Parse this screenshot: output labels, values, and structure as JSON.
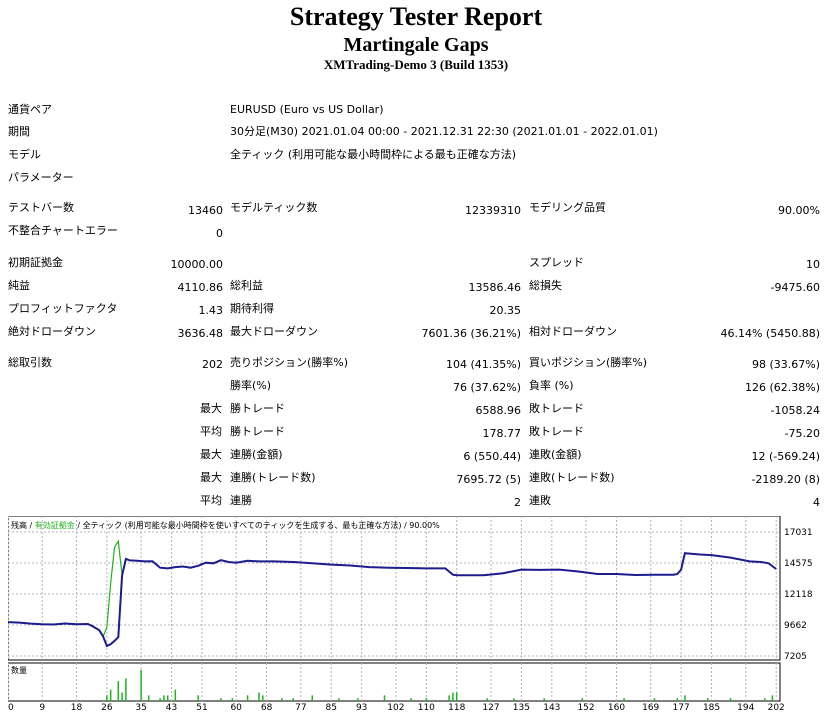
{
  "header": {
    "title": "Strategy Tester Report",
    "subtitle": "Martingale Gaps",
    "server": "XMTrading-Demo 3 (Build 1353)"
  },
  "info": {
    "symbol_label": "通貨ペア",
    "symbol_value": "EURUSD (Euro vs US Dollar)",
    "period_label": "期間",
    "period_value": "30分足(M30) 2021.01.04 00:00 - 2021.12.31 22:30 (2021.01.01 - 2022.01.01)",
    "model_label": "モデル",
    "model_value": "全ティック (利用可能な最小時間枠による最も正確な方法)",
    "params_label": "パラメーター"
  },
  "stats": {
    "bars_label": "テストバー数",
    "bars_value": "13460",
    "ticks_label": "モデルティック数",
    "ticks_value": "12339310",
    "quality_label": "モデリング品質",
    "quality_value": "90.00%",
    "mismatch_label": "不整合チャートエラー",
    "mismatch_value": "0",
    "deposit_label": "初期証拠金",
    "deposit_value": "10000.00",
    "spread_label": "スプレッド",
    "spread_value": "10",
    "net_label": "純益",
    "net_value": "4110.86",
    "gross_profit_label": "総利益",
    "gross_profit_value": "13586.46",
    "gross_loss_label": "総損失",
    "gross_loss_value": "-9475.60",
    "pf_label": "プロフィットファクタ",
    "pf_value": "1.43",
    "payoff_label": "期待利得",
    "payoff_value": "20.35",
    "abs_dd_label": "絶対ドローダウン",
    "abs_dd_value": "3636.48",
    "max_dd_label": "最大ドローダウン",
    "max_dd_value": "7601.36 (36.21%)",
    "rel_dd_label": "相対ドローダウン",
    "rel_dd_value": "46.14% (5450.88)",
    "trades_label": "総取引数",
    "trades_value": "202",
    "short_label": "売りポジション(勝率%)",
    "short_value": "104 (41.35%)",
    "long_label": "買いポジション(勝率%)",
    "long_value": "98 (33.67%)",
    "win_label": "勝率(%)",
    "win_value": "76 (37.62%)",
    "loss_label": "負率 (%)",
    "loss_value": "126 (62.38%)",
    "max_label": "最大",
    "avg_label": "平均",
    "win_trade_label": "勝トレード",
    "loss_trade_label": "敗トレード",
    "largest_win": "6588.96",
    "largest_loss": "-1058.24",
    "avg_win": "178.77",
    "avg_loss": "-75.20",
    "cons_win_amt_label": "連勝(金額)",
    "cons_win_amt_value": "6 (550.44)",
    "cons_loss_amt_label": "連敗(金額)",
    "cons_loss_amt_value": "12 (-569.24)",
    "cons_win_cnt_label": "連勝(トレード数)",
    "cons_win_cnt_value": "7695.72 (5)",
    "cons_loss_cnt_label": "連敗(トレード数)",
    "cons_loss_cnt_value": "-2189.20 (8)",
    "avg_cons_win_label": "連勝",
    "avg_cons_win_value": "2",
    "avg_cons_loss_label": "連敗",
    "avg_cons_loss_value": "4"
  },
  "chart_data": {
    "type": "line",
    "legend": {
      "balance": "残高",
      "sep1": " / ",
      "equity": "有効証拠金",
      "rest": " / 全ティック (利用可能な最小時間枠を使いすべてのティックを生成する、最も正確な方法) / 90.00%"
    },
    "volume_label": "数量",
    "y_ticks": [
      "17031",
      "14575",
      "12118",
      "9662",
      "7205"
    ],
    "ylim": [
      7205,
      17031
    ],
    "x_ticks": [
      "0",
      "9",
      "18",
      "26",
      "35",
      "43",
      "51",
      "60",
      "68",
      "77",
      "85",
      "93",
      "102",
      "110",
      "118",
      "127",
      "135",
      "143",
      "152",
      "160",
      "169",
      "177",
      "185",
      "194",
      "202"
    ],
    "xlim": [
      0,
      203
    ],
    "colors": {
      "balance": "#1c1c8c",
      "equity": "#1eb41e",
      "volume": "#1eb41e",
      "grid": "#b4b4b4"
    },
    "series": [
      {
        "name": "残高",
        "x": [
          0,
          3,
          6,
          9,
          12,
          15,
          18,
          21,
          22,
          24,
          25,
          26,
          27,
          28,
          29,
          30,
          31,
          32,
          34,
          36,
          38,
          40,
          42,
          44,
          46,
          48,
          50,
          52,
          54,
          56,
          58,
          60,
          63,
          66,
          70,
          75,
          80,
          85,
          90,
          95,
          100,
          105,
          110,
          115,
          117,
          118,
          125,
          130,
          135,
          140,
          145,
          150,
          155,
          160,
          165,
          170,
          175,
          176,
          177,
          178,
          182,
          185,
          190,
          195,
          198,
          200,
          202
        ],
        "y": [
          9890,
          9850,
          9770,
          9720,
          9700,
          9780,
          9720,
          9740,
          9600,
          9250,
          8750,
          8000,
          8150,
          8400,
          8700,
          13600,
          14900,
          14780,
          14750,
          14700,
          14720,
          14200,
          14150,
          14250,
          14300,
          14200,
          14350,
          14600,
          14550,
          14800,
          14650,
          14600,
          14750,
          14700,
          14700,
          14650,
          14550,
          14450,
          14380,
          14250,
          14200,
          14180,
          14150,
          14150,
          13650,
          13600,
          13600,
          13750,
          14050,
          14030,
          14050,
          13900,
          13700,
          13700,
          13620,
          13650,
          13650,
          13700,
          14050,
          15350,
          15250,
          15200,
          15000,
          14700,
          14650,
          14550,
          14100
        ]
      },
      {
        "name": "有効証拠金",
        "x": [
          0,
          3,
          6,
          9,
          12,
          15,
          18,
          21,
          22,
          24,
          25,
          26,
          27,
          28,
          29,
          30,
          31,
          32,
          34,
          36,
          38,
          40,
          42,
          44,
          46,
          48,
          50,
          52,
          54,
          56,
          58,
          60,
          63,
          66,
          70,
          75,
          80,
          85,
          90,
          95,
          100,
          105,
          110,
          115,
          117,
          118,
          125,
          130,
          135,
          140,
          145,
          150,
          155,
          160,
          165,
          170,
          175,
          176,
          177,
          178,
          182,
          185,
          190,
          195,
          198,
          200,
          202
        ],
        "y": [
          9890,
          9850,
          9770,
          9720,
          9700,
          9780,
          9720,
          9740,
          9600,
          9250,
          8750,
          9500,
          13000,
          15800,
          16300,
          13600,
          14900,
          14780,
          14750,
          14700,
          14720,
          14200,
          14150,
          14250,
          14300,
          14200,
          14350,
          14600,
          14550,
          14800,
          14650,
          14600,
          14750,
          14700,
          14700,
          14650,
          14550,
          14450,
          14380,
          14250,
          14200,
          14180,
          14150,
          14150,
          13650,
          13600,
          13600,
          13750,
          14050,
          14030,
          14050,
          13900,
          13700,
          13700,
          13620,
          13650,
          13650,
          13700,
          14050,
          15350,
          15250,
          15200,
          15000,
          14700,
          14650,
          14550,
          14100
        ]
      }
    ],
    "volume": {
      "x": [
        26,
        27,
        29,
        30,
        31,
        35,
        37,
        40,
        41,
        42,
        44,
        50,
        56,
        59,
        63,
        66,
        67,
        72,
        75,
        80,
        87,
        92,
        99,
        106,
        110,
        116,
        117,
        118,
        126,
        133,
        141,
        151,
        162,
        170,
        176,
        178,
        184,
        190,
        199,
        201
      ],
      "y": [
        2,
        4,
        7,
        3,
        8,
        11,
        2,
        1,
        2,
        2,
        4,
        2,
        1,
        1,
        2,
        3,
        2,
        1,
        1,
        2,
        1,
        1,
        2,
        1,
        1,
        2,
        3,
        3,
        1,
        1,
        1,
        1,
        1,
        1,
        1,
        2,
        1,
        1,
        1,
        2
      ],
      "max": 12
    }
  }
}
